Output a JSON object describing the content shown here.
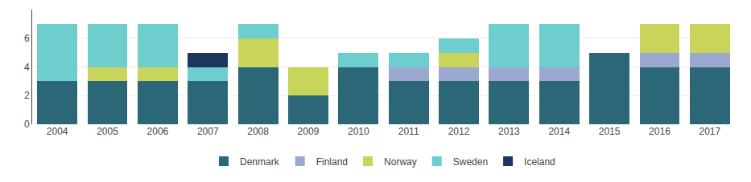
{
  "chart_data": {
    "type": "bar",
    "stacked": true,
    "categories": [
      "2004",
      "2005",
      "2006",
      "2007",
      "2008",
      "2009",
      "2010",
      "2011",
      "2012",
      "2013",
      "2014",
      "2015",
      "2016",
      "2017"
    ],
    "series": [
      {
        "name": "Denmark",
        "color": "#2B6777",
        "values": [
          3,
          3,
          3,
          3,
          4,
          2,
          4,
          3,
          3,
          3,
          3,
          5,
          4,
          4
        ]
      },
      {
        "name": "Finland",
        "color": "#9BA8D0",
        "values": [
          0,
          0,
          0,
          0,
          0,
          0,
          0,
          1,
          1,
          1,
          1,
          0,
          1,
          1
        ]
      },
      {
        "name": "Norway",
        "color": "#C8D45A",
        "values": [
          0,
          1,
          1,
          0,
          2,
          2,
          0,
          0,
          1,
          0,
          0,
          0,
          2,
          2
        ]
      },
      {
        "name": "Sweden",
        "color": "#6ECECE",
        "values": [
          4,
          3,
          3,
          1,
          1,
          0,
          1,
          1,
          1,
          3,
          3,
          0,
          0,
          0
        ]
      },
      {
        "name": "Iceland",
        "color": "#1C3660",
        "values": [
          0,
          0,
          0,
          1,
          0,
          0,
          0,
          0,
          0,
          0,
          0,
          0,
          0,
          0
        ]
      }
    ],
    "ylim": [
      0,
      8
    ],
    "yticks": [
      0,
      2,
      4,
      6
    ],
    "grid": true,
    "legend": "bottom"
  }
}
